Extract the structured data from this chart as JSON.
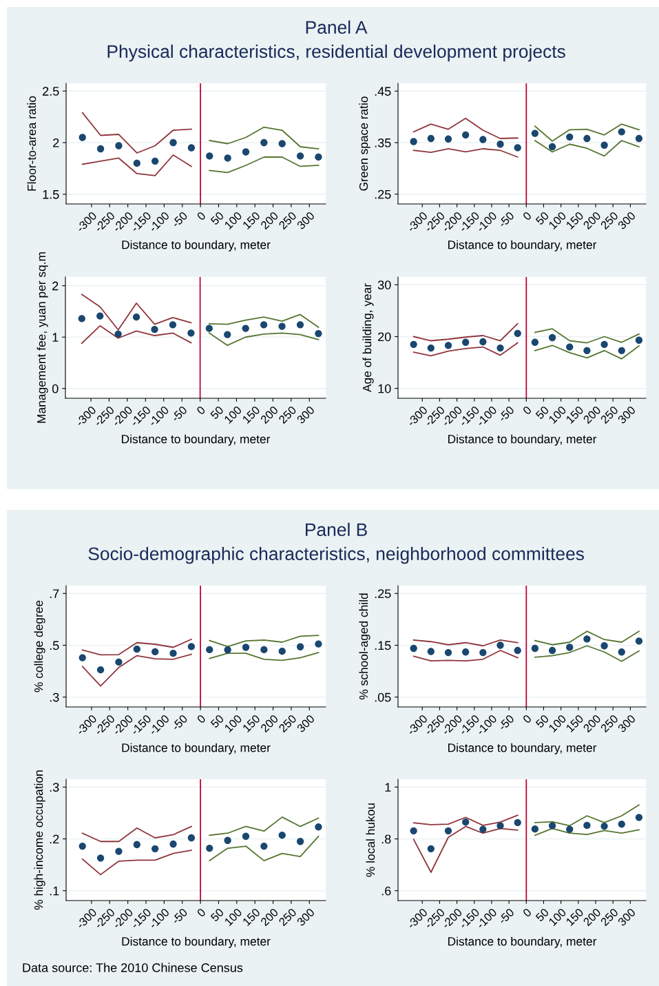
{
  "chart_data": [
    {
      "type": "scatter",
      "title": "Panel A",
      "subtitle": "Physical characteristics, residential development projects",
      "xlabel": "Distance to boundary, meter",
      "ylabel": "Floor-to-area ratio",
      "xlim": [
        -370,
        345
      ],
      "xticks": [
        -300,
        -250,
        -200,
        -150,
        -100,
        -50,
        0,
        50,
        100,
        150,
        200,
        250,
        300
      ],
      "ylim": [
        1.406,
        2.574
      ],
      "yticks": [
        1.5,
        2,
        2.5
      ],
      "grid": "y",
      "ref_lines": [
        {
          "axis": "x",
          "value": 0,
          "color": "#c10534"
        }
      ],
      "series": [
        {
          "marker": "circle",
          "color": "#1a476f",
          "x": [
            -325,
            -275,
            -225,
            -175,
            -125,
            -75,
            -25,
            25,
            75,
            125,
            175,
            225,
            275,
            325
          ],
          "values": [
            2.05,
            1.94,
            1.97,
            1.8,
            1.82,
            2.0,
            1.95,
            1.87,
            1.85,
            1.91,
            2.0,
            1.99,
            1.87,
            1.86
          ]
        },
        {
          "type": "line",
          "color": "#90353b",
          "x": [
            -325,
            -275,
            -225,
            -175,
            -125,
            -75,
            -25
          ],
          "values": [
            2.29,
            2.07,
            2.08,
            1.9,
            1.97,
            2.12,
            2.13
          ]
        },
        {
          "type": "line",
          "color": "#90353b",
          "x": [
            -325,
            -275,
            -225,
            -175,
            -125,
            -75,
            -25
          ],
          "values": [
            1.79,
            1.82,
            1.85,
            1.7,
            1.68,
            1.88,
            1.77
          ]
        },
        {
          "type": "line",
          "color": "#55752f",
          "x": [
            25,
            75,
            125,
            175,
            225,
            275,
            325
          ],
          "values": [
            2.02,
            1.99,
            2.05,
            2.15,
            2.12,
            1.96,
            1.94
          ]
        },
        {
          "type": "line",
          "color": "#55752f",
          "x": [
            25,
            75,
            125,
            175,
            225,
            275,
            325
          ],
          "values": [
            1.73,
            1.71,
            1.78,
            1.86,
            1.86,
            1.77,
            1.78
          ]
        }
      ]
    },
    {
      "type": "scatter",
      "xlabel": "Distance to boundary, meter",
      "ylabel": "Green space ratio",
      "xlim": [
        -370,
        345
      ],
      "xticks": [
        -300,
        -250,
        -200,
        -150,
        -100,
        -50,
        0,
        50,
        100,
        150,
        200,
        250,
        300
      ],
      "ylim": [
        0.231,
        0.465
      ],
      "yticks": [
        {
          "value": 0.25,
          "label": ".25"
        },
        {
          "value": 0.35,
          "label": ".35"
        },
        {
          "value": 0.45,
          "label": ".45"
        }
      ],
      "grid": "y",
      "ref_lines": [
        {
          "axis": "x",
          "value": 0,
          "color": "#c10534"
        }
      ],
      "series": [
        {
          "marker": "circle",
          "color": "#1a476f",
          "x": [
            -325,
            -275,
            -225,
            -175,
            -125,
            -75,
            -25,
            25,
            75,
            125,
            175,
            225,
            275,
            325
          ],
          "values": [
            0.352,
            0.358,
            0.357,
            0.365,
            0.356,
            0.347,
            0.34,
            0.368,
            0.342,
            0.361,
            0.358,
            0.345,
            0.371,
            0.358
          ]
        },
        {
          "type": "line",
          "color": "#90353b",
          "x": [
            -325,
            -275,
            -225,
            -175,
            -125,
            -75,
            -25
          ],
          "values": [
            0.371,
            0.386,
            0.376,
            0.397,
            0.374,
            0.358,
            0.359
          ]
        },
        {
          "type": "line",
          "color": "#90353b",
          "x": [
            -325,
            -275,
            -225,
            -175,
            -125,
            -75,
            -25
          ],
          "values": [
            0.335,
            0.331,
            0.338,
            0.332,
            0.338,
            0.335,
            0.322
          ]
        },
        {
          "type": "line",
          "color": "#55752f",
          "x": [
            25,
            75,
            125,
            175,
            225,
            275,
            325
          ],
          "values": [
            0.382,
            0.353,
            0.375,
            0.376,
            0.365,
            0.386,
            0.375
          ]
        },
        {
          "type": "line",
          "color": "#55752f",
          "x": [
            25,
            75,
            125,
            175,
            225,
            275,
            325
          ],
          "values": [
            0.354,
            0.332,
            0.347,
            0.339,
            0.324,
            0.354,
            0.342
          ]
        }
      ]
    },
    {
      "type": "scatter",
      "xlabel": "Distance to boundary, meter",
      "ylabel": "Management fee, yuan per sq.m",
      "xlim": [
        -370,
        345
      ],
      "xticks": [
        -300,
        -250,
        -200,
        -150,
        -100,
        -50,
        0,
        50,
        100,
        150,
        200,
        250,
        300
      ],
      "ylim": [
        -0.19,
        2.17
      ],
      "yticks": [
        0,
        1,
        2
      ],
      "grid": "y",
      "ref_lines": [
        {
          "axis": "x",
          "value": 0,
          "color": "#c10534"
        }
      ],
      "series": [
        {
          "marker": "circle",
          "color": "#1a476f",
          "x": [
            -325,
            -275,
            -225,
            -175,
            -125,
            -75,
            -25,
            25,
            75,
            125,
            175,
            225,
            275,
            325
          ],
          "values": [
            1.36,
            1.41,
            1.06,
            1.39,
            1.15,
            1.24,
            1.08,
            1.17,
            1.05,
            1.17,
            1.24,
            1.21,
            1.24,
            1.07
          ]
        },
        {
          "type": "line",
          "color": "#90353b",
          "x": [
            -325,
            -275,
            -225,
            -175,
            -125,
            -75,
            -25
          ],
          "values": [
            1.83,
            1.59,
            1.14,
            1.66,
            1.25,
            1.38,
            1.28
          ]
        },
        {
          "type": "line",
          "color": "#90353b",
          "x": [
            -325,
            -275,
            -225,
            -175,
            -125,
            -75,
            -25
          ],
          "values": [
            0.88,
            1.22,
            0.98,
            1.12,
            1.03,
            1.08,
            0.89
          ]
        },
        {
          "type": "line",
          "color": "#55752f",
          "x": [
            25,
            75,
            125,
            175,
            225,
            275,
            325
          ],
          "values": [
            1.26,
            1.25,
            1.33,
            1.39,
            1.31,
            1.44,
            1.19
          ]
        },
        {
          "type": "line",
          "color": "#55752f",
          "x": [
            25,
            75,
            125,
            175,
            225,
            275,
            325
          ],
          "values": [
            1.08,
            0.84,
            1.0,
            1.06,
            1.08,
            1.05,
            0.95
          ]
        }
      ]
    },
    {
      "type": "scatter",
      "xlabel": "Distance to boundary, meter",
      "ylabel": "Age of building, year",
      "xlim": [
        -370,
        345
      ],
      "xticks": [
        -300,
        -250,
        -200,
        -150,
        -100,
        -50,
        0,
        50,
        100,
        150,
        200,
        250,
        300
      ],
      "ylim": [
        8.1,
        31.5
      ],
      "yticks": [
        10,
        20,
        30
      ],
      "grid": "y",
      "ref_lines": [
        {
          "axis": "x",
          "value": 0,
          "color": "#c10534"
        }
      ],
      "series": [
        {
          "marker": "circle",
          "color": "#1a476f",
          "x": [
            -325,
            -275,
            -225,
            -175,
            -125,
            -75,
            -25,
            25,
            75,
            125,
            175,
            225,
            275,
            325
          ],
          "values": [
            18.5,
            17.8,
            18.3,
            18.9,
            19.0,
            17.8,
            20.6,
            18.9,
            19.8,
            18.0,
            17.3,
            18.5,
            17.3,
            19.3
          ]
        },
        {
          "type": "line",
          "color": "#90353b",
          "x": [
            -325,
            -275,
            -225,
            -175,
            -125,
            -75,
            -25
          ],
          "values": [
            20.0,
            19.2,
            19.5,
            19.9,
            20.2,
            19.2,
            22.5
          ]
        },
        {
          "type": "line",
          "color": "#90353b",
          "x": [
            -325,
            -275,
            -225,
            -175,
            -125,
            -75,
            -25
          ],
          "values": [
            17.0,
            16.3,
            17.2,
            17.7,
            18.0,
            16.4,
            18.8
          ]
        },
        {
          "type": "line",
          "color": "#55752f",
          "x": [
            25,
            75,
            125,
            175,
            225,
            275,
            325
          ],
          "values": [
            20.8,
            21.5,
            19.2,
            18.8,
            20.0,
            18.9,
            20.5
          ]
        },
        {
          "type": "line",
          "color": "#55752f",
          "x": [
            25,
            75,
            125,
            175,
            225,
            275,
            325
          ],
          "values": [
            17.3,
            18.3,
            16.9,
            15.9,
            17.3,
            15.7,
            18.2
          ]
        }
      ]
    },
    {
      "type": "scatter",
      "title": "Panel B",
      "subtitle": "Socio-demographic characteristics, neighborhood committees",
      "xlabel": "Distance to boundary, meter",
      "ylabel": "% college degree",
      "xlim": [
        -370,
        345
      ],
      "xticks": [
        -300,
        -250,
        -200,
        -150,
        -100,
        -50,
        0,
        50,
        100,
        150,
        200,
        250,
        300
      ],
      "ylim": [
        0.262,
        0.73
      ],
      "yticks": [
        {
          "value": 0.3,
          "label": ".3"
        },
        {
          "value": 0.5,
          "label": ".5"
        },
        {
          "value": 0.7,
          "label": ".7"
        }
      ],
      "grid": "y",
      "ref_lines": [
        {
          "axis": "x",
          "value": 0,
          "color": "#c10534"
        }
      ],
      "series": [
        {
          "marker": "circle",
          "color": "#1a476f",
          "x": [
            -325,
            -275,
            -225,
            -175,
            -125,
            -75,
            -25,
            25,
            75,
            125,
            175,
            225,
            275,
            325
          ],
          "values": [
            0.452,
            0.405,
            0.435,
            0.485,
            0.475,
            0.469,
            0.495,
            0.483,
            0.482,
            0.492,
            0.483,
            0.477,
            0.494,
            0.505
          ]
        },
        {
          "type": "line",
          "color": "#90353b",
          "x": [
            -325,
            -275,
            -225,
            -175,
            -125,
            -75,
            -25
          ],
          "values": [
            0.482,
            0.463,
            0.464,
            0.51,
            0.504,
            0.492,
            0.523
          ]
        },
        {
          "type": "line",
          "color": "#90353b",
          "x": [
            -325,
            -275,
            -225,
            -175,
            -125,
            -75,
            -25
          ],
          "values": [
            0.418,
            0.343,
            0.414,
            0.46,
            0.448,
            0.446,
            0.465
          ]
        },
        {
          "type": "line",
          "color": "#55752f",
          "x": [
            25,
            75,
            125,
            175,
            225,
            275,
            325
          ],
          "values": [
            0.518,
            0.495,
            0.517,
            0.52,
            0.512,
            0.535,
            0.538
          ]
        },
        {
          "type": "line",
          "color": "#55752f",
          "x": [
            25,
            75,
            125,
            175,
            225,
            275,
            325
          ],
          "values": [
            0.449,
            0.469,
            0.469,
            0.446,
            0.442,
            0.452,
            0.472
          ]
        }
      ]
    },
    {
      "type": "scatter",
      "xlabel": "Distance to boundary, meter",
      "ylabel": "% school-aged child",
      "xlim": [
        -370,
        345
      ],
      "xticks": [
        -300,
        -250,
        -200,
        -150,
        -100,
        -50,
        0,
        50,
        100,
        150,
        200,
        250,
        300
      ],
      "ylim": [
        0.031,
        0.265
      ],
      "yticks": [
        {
          "value": 0.05,
          "label": ".05"
        },
        {
          "value": 0.15,
          "label": ".15"
        },
        {
          "value": 0.25,
          "label": ".25"
        }
      ],
      "grid": "y",
      "ref_lines": [
        {
          "axis": "x",
          "value": 0,
          "color": "#c10534"
        }
      ],
      "series": [
        {
          "marker": "circle",
          "color": "#1a476f",
          "x": [
            -325,
            -275,
            -225,
            -175,
            -125,
            -75,
            -25,
            25,
            75,
            125,
            175,
            225,
            275,
            325
          ],
          "values": [
            0.144,
            0.138,
            0.136,
            0.137,
            0.136,
            0.15,
            0.14,
            0.144,
            0.14,
            0.146,
            0.162,
            0.149,
            0.137,
            0.158
          ]
        },
        {
          "type": "line",
          "color": "#90353b",
          "x": [
            -325,
            -275,
            -225,
            -175,
            -125,
            -75,
            -25
          ],
          "values": [
            0.16,
            0.157,
            0.151,
            0.155,
            0.149,
            0.16,
            0.155
          ]
        },
        {
          "type": "line",
          "color": "#90353b",
          "x": [
            -325,
            -275,
            -225,
            -175,
            -125,
            -75,
            -25
          ],
          "values": [
            0.129,
            0.12,
            0.121,
            0.12,
            0.123,
            0.14,
            0.126
          ]
        },
        {
          "type": "line",
          "color": "#55752f",
          "x": [
            25,
            75,
            125,
            175,
            225,
            275,
            325
          ],
          "values": [
            0.159,
            0.151,
            0.156,
            0.177,
            0.161,
            0.156,
            0.177
          ]
        },
        {
          "type": "line",
          "color": "#55752f",
          "x": [
            25,
            75,
            125,
            175,
            225,
            275,
            325
          ],
          "values": [
            0.127,
            0.13,
            0.136,
            0.149,
            0.137,
            0.119,
            0.139
          ]
        }
      ]
    },
    {
      "type": "scatter",
      "xlabel": "Distance to boundary, meter",
      "ylabel": "% high-income occupation",
      "xlim": [
        -370,
        345
      ],
      "xticks": [
        -300,
        -250,
        -200,
        -150,
        -100,
        -50,
        0,
        50,
        100,
        150,
        200,
        250,
        300
      ],
      "ylim": [
        0.081,
        0.315
      ],
      "yticks": [
        {
          "value": 0.1,
          "label": ".1"
        },
        {
          "value": 0.2,
          "label": ".2"
        },
        {
          "value": 0.3,
          "label": ".3"
        }
      ],
      "grid": "y",
      "ref_lines": [
        {
          "axis": "x",
          "value": 0,
          "color": "#c10534"
        }
      ],
      "series": [
        {
          "marker": "circle",
          "color": "#1a476f",
          "x": [
            -325,
            -275,
            -225,
            -175,
            -125,
            -75,
            -25,
            25,
            75,
            125,
            175,
            225,
            275,
            325
          ],
          "values": [
            0.186,
            0.163,
            0.176,
            0.189,
            0.181,
            0.19,
            0.202,
            0.182,
            0.197,
            0.205,
            0.186,
            0.207,
            0.195,
            0.223
          ]
        },
        {
          "type": "line",
          "color": "#90353b",
          "x": [
            -325,
            -275,
            -225,
            -175,
            -125,
            -75,
            -25
          ],
          "values": [
            0.211,
            0.195,
            0.195,
            0.221,
            0.202,
            0.208,
            0.224
          ]
        },
        {
          "type": "line",
          "color": "#90353b",
          "x": [
            -325,
            -275,
            -225,
            -175,
            -125,
            -75,
            -25
          ],
          "values": [
            0.161,
            0.131,
            0.157,
            0.159,
            0.159,
            0.172,
            0.178
          ]
        },
        {
          "type": "line",
          "color": "#55752f",
          "x": [
            25,
            75,
            125,
            175,
            225,
            275,
            325
          ],
          "values": [
            0.207,
            0.211,
            0.224,
            0.215,
            0.242,
            0.224,
            0.24
          ]
        },
        {
          "type": "line",
          "color": "#55752f",
          "x": [
            25,
            75,
            125,
            175,
            225,
            275,
            325
          ],
          "values": [
            0.158,
            0.182,
            0.186,
            0.158,
            0.172,
            0.166,
            0.205
          ]
        }
      ]
    },
    {
      "type": "scatter",
      "xlabel": "Distance to boundary, meter",
      "ylabel": "% local hukou",
      "xlim": [
        -370,
        345
      ],
      "xticks": [
        -300,
        -250,
        -200,
        -150,
        -100,
        -50,
        0,
        50,
        100,
        150,
        200,
        250,
        300
      ],
      "ylim": [
        0.562,
        1.03
      ],
      "yticks": [
        {
          "value": 0.6,
          "label": ".6"
        },
        {
          "value": 0.8,
          "label": ".8"
        },
        1
      ],
      "grid": "y",
      "annotations": [
        "Data source: The 2010 Chinese Census"
      ],
      "ref_lines": [
        {
          "axis": "x",
          "value": 0,
          "color": "#c10534"
        }
      ],
      "series": [
        {
          "marker": "circle",
          "color": "#1a476f",
          "x": [
            -325,
            -275,
            -225,
            -175,
            -125,
            -75,
            -25,
            25,
            75,
            125,
            175,
            225,
            275,
            325
          ],
          "values": [
            0.831,
            0.762,
            0.831,
            0.865,
            0.837,
            0.851,
            0.863,
            0.838,
            0.851,
            0.837,
            0.852,
            0.849,
            0.857,
            0.883
          ]
        },
        {
          "type": "line",
          "color": "#90353b",
          "x": [
            -325,
            -275,
            -225,
            -175,
            -125,
            -75,
            -25
          ],
          "values": [
            0.862,
            0.855,
            0.857,
            0.883,
            0.852,
            0.865,
            0.891
          ]
        },
        {
          "type": "line",
          "color": "#90353b",
          "x": [
            -325,
            -275,
            -225,
            -175,
            -125,
            -75,
            -25
          ],
          "values": [
            0.798,
            0.671,
            0.806,
            0.848,
            0.822,
            0.84,
            0.834
          ]
        },
        {
          "type": "line",
          "color": "#55752f",
          "x": [
            25,
            75,
            125,
            175,
            225,
            275,
            325
          ],
          "values": [
            0.863,
            0.866,
            0.851,
            0.889,
            0.863,
            0.889,
            0.931
          ]
        },
        {
          "type": "line",
          "color": "#55752f",
          "x": [
            25,
            75,
            125,
            175,
            225,
            275,
            325
          ],
          "values": [
            0.814,
            0.84,
            0.822,
            0.817,
            0.832,
            0.822,
            0.835
          ]
        }
      ]
    }
  ]
}
